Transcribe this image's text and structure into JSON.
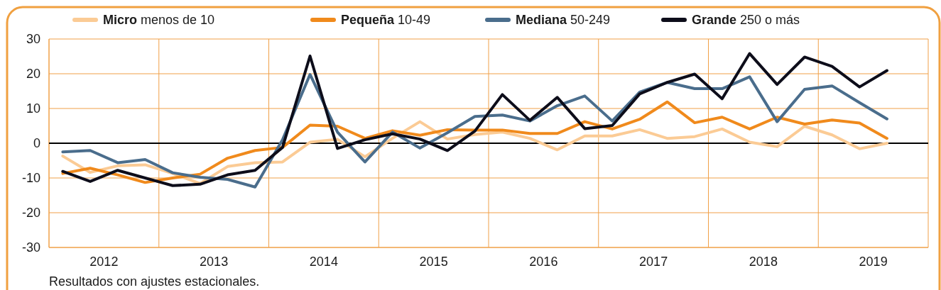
{
  "chart_data": {
    "type": "line",
    "x": [
      2012.125,
      2012.375,
      2012.625,
      2012.875,
      2013.125,
      2013.375,
      2013.625,
      2013.875,
      2014.125,
      2014.375,
      2014.625,
      2014.875,
      2015.125,
      2015.375,
      2015.625,
      2015.875,
      2016.125,
      2016.375,
      2016.625,
      2016.875,
      2017.125,
      2017.375,
      2017.625,
      2017.875,
      2018.125,
      2018.375,
      2018.625,
      2018.875,
      2019.125,
      2019.375,
      2019.625
    ],
    "series": [
      {
        "name": "Micro menos de 10",
        "color": "#fbcb95",
        "values": [
          -3.7,
          -8.4,
          -6.5,
          -6.2,
          -8.7,
          -11.6,
          -6.7,
          -5.6,
          -5.4,
          0.3,
          1.1,
          -3.9,
          1.4,
          6.2,
          1.2,
          2.5,
          3.2,
          1.4,
          -1.9,
          2.1,
          2.1,
          3.9,
          1.4,
          1.9,
          4.1,
          0.3,
          -1,
          4.9,
          2.4,
          -1.6,
          0
        ]
      },
      {
        "name": "Pequeña 10-49",
        "color": "#f08a1c",
        "values": [
          -8.7,
          -7.2,
          -9.1,
          -11.3,
          -10,
          -8.9,
          -4.3,
          -2.1,
          -1.2,
          5.2,
          4.9,
          1.4,
          3.6,
          2.3,
          3.9,
          3.8,
          3.8,
          2.8,
          2.8,
          6.2,
          4.1,
          6.9,
          11.9,
          5.9,
          7.5,
          4.1,
          7.5,
          5.5,
          6.7,
          5.8,
          1.4
        ]
      },
      {
        "name": "Mediana 50-249",
        "color": "#4a6d8c",
        "values": [
          -2.5,
          -2.1,
          -5.6,
          -4.7,
          -8.5,
          -9.8,
          -10.4,
          -12.6,
          1,
          19.8,
          3.2,
          -5.4,
          3.2,
          -1.4,
          3,
          7.7,
          8.1,
          6.4,
          10.8,
          13.6,
          6.4,
          14.7,
          17.5,
          15.7,
          15.7,
          19.1,
          6.2,
          15.5,
          16.5,
          11.7,
          7
        ]
      },
      {
        "name": "Grande 250 o más",
        "color": "#0d0d1a",
        "values": [
          -8.1,
          -11,
          -7.8,
          -10,
          -12.2,
          -11.8,
          -9.1,
          -7.8,
          -1.2,
          25.1,
          -1.5,
          1,
          2.7,
          1.2,
          -2.1,
          3.5,
          14,
          6.6,
          13.2,
          4.2,
          5.1,
          14.2,
          17.5,
          19.9,
          12.8,
          25.8,
          16.9,
          24.8,
          22.1,
          16.2,
          20.9
        ]
      }
    ],
    "xlim": [
      2012,
      2020
    ],
    "xticks": [
      {
        "value": 2012,
        "label": null
      },
      {
        "value": 2012.5,
        "label": "2012"
      },
      {
        "value": 2013,
        "label": null
      },
      {
        "value": 2013.5,
        "label": "2013"
      },
      {
        "value": 2014,
        "label": null
      },
      {
        "value": 2014.5,
        "label": "2014"
      },
      {
        "value": 2015,
        "label": null
      },
      {
        "value": 2015.5,
        "label": "2015"
      },
      {
        "value": 2016,
        "label": null
      },
      {
        "value": 2016.5,
        "label": "2016"
      },
      {
        "value": 2017,
        "label": null
      },
      {
        "value": 2017.5,
        "label": "2017"
      },
      {
        "value": 2018,
        "label": null
      },
      {
        "value": 2018.5,
        "label": "2018"
      },
      {
        "value": 2019,
        "label": null
      },
      {
        "value": 2019.5,
        "label": "2019"
      },
      {
        "value": 2020,
        "label": null
      }
    ],
    "ylim": [
      -30,
      30
    ],
    "yticks": [
      -30,
      -20,
      -10,
      0,
      10,
      20,
      30
    ],
    "grid": true,
    "legend": "top",
    "marker": "none",
    "line_style": "solid",
    "ref_lines": [
      {
        "axis": "y",
        "value": 0,
        "color": "#000000"
      }
    ],
    "annotations": [
      "Resultados con ajustes estacionales."
    ]
  }
}
